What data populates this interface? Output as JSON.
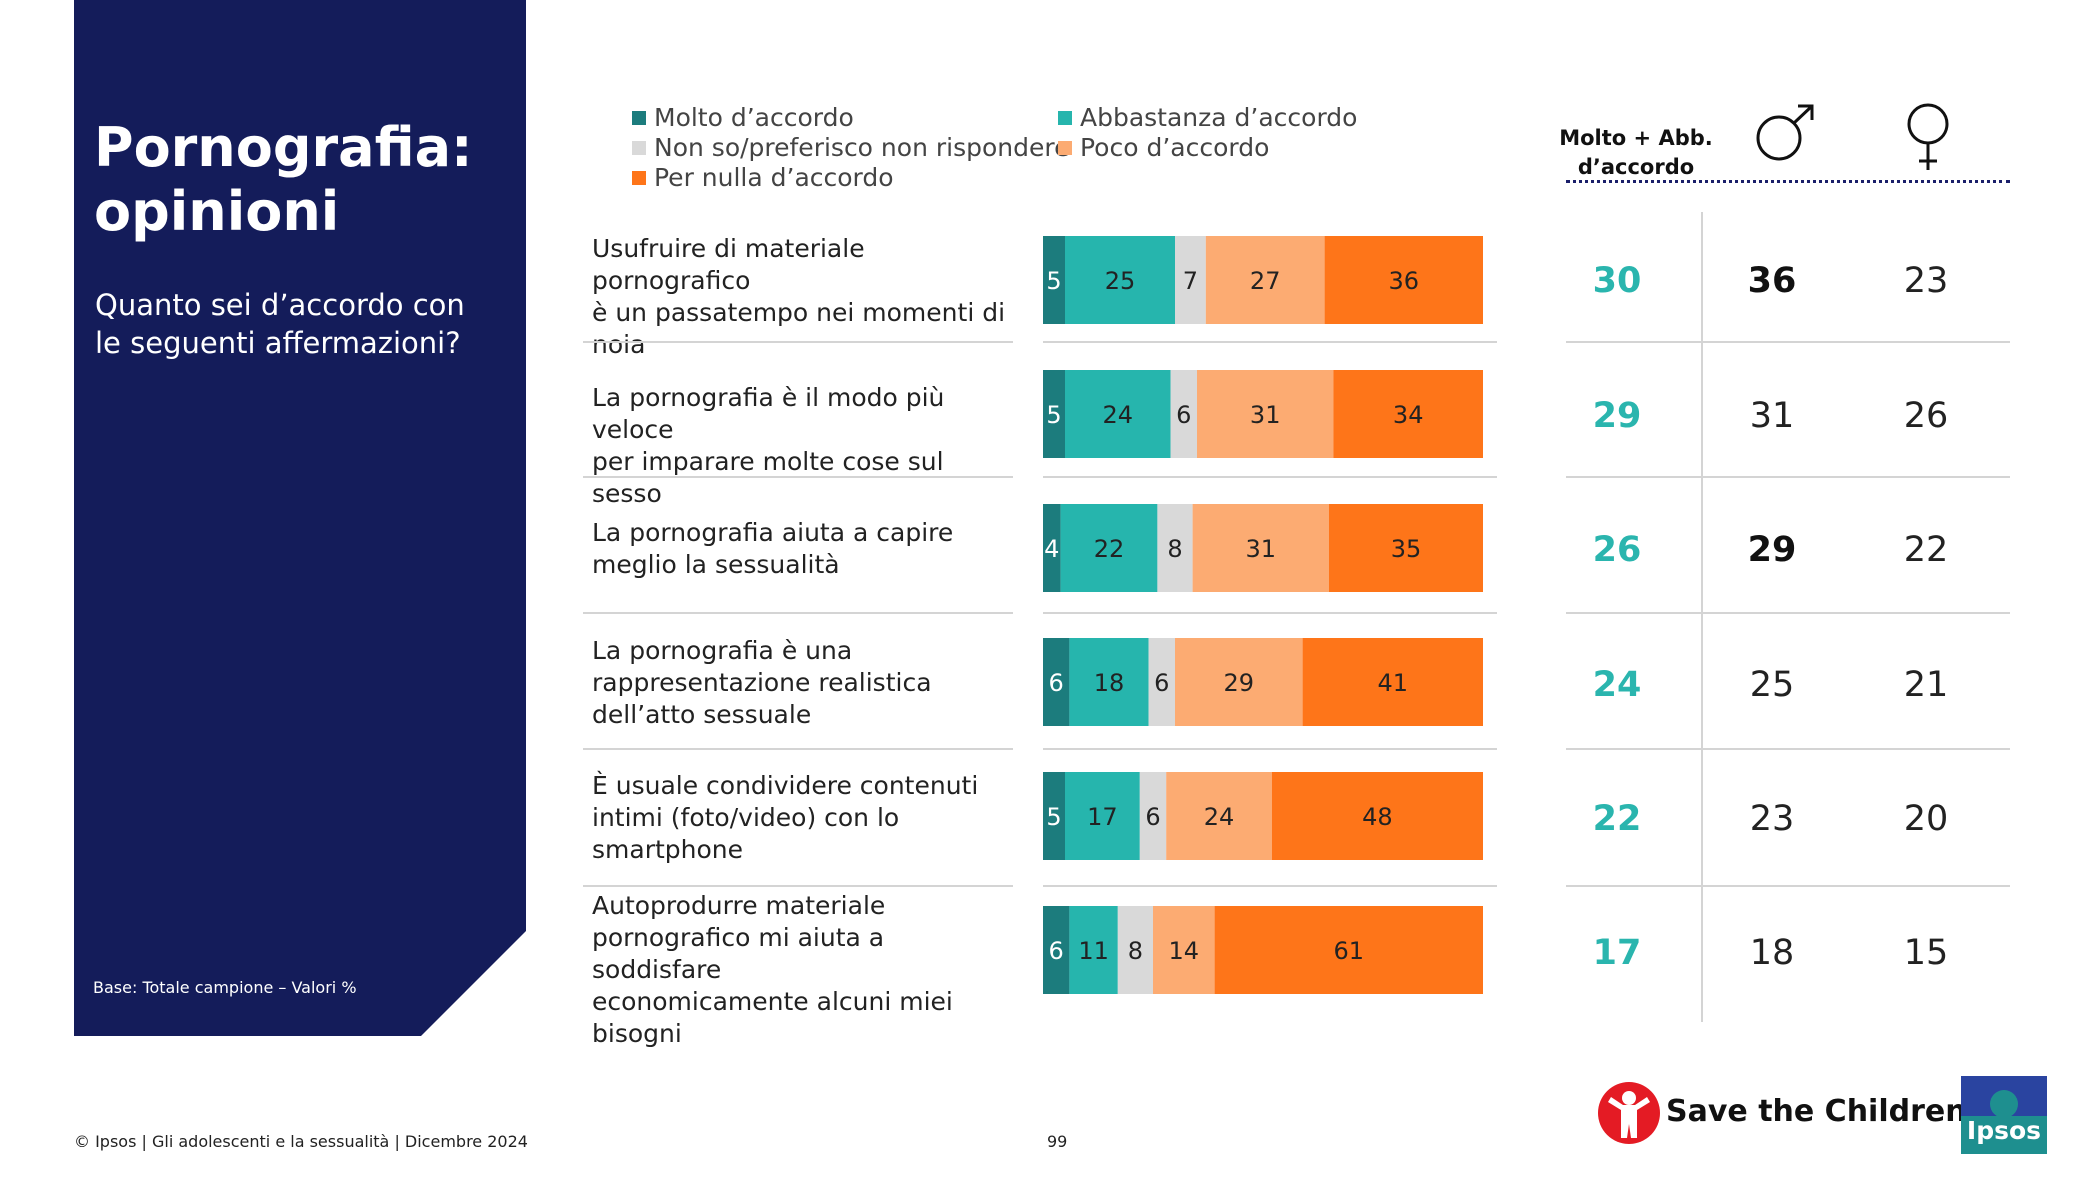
{
  "slide": {
    "title_line1": "Pornografia:",
    "title_line2": "opinioni",
    "subtitle": "Quanto sei d’accordo con le seguenti affermazioni?",
    "base_note": "Base: Totale campione – Valori %"
  },
  "legend": [
    {
      "label": "Molto d’accordo",
      "color": "#1c7c7d"
    },
    {
      "label": "Abbastanza d’accordo",
      "color": "#26b5ad"
    },
    {
      "label": "Non so/preferisco non rispondere",
      "color": "#d9d9d9"
    },
    {
      "label": "Poco d’accordo",
      "color": "#fcab72"
    },
    {
      "label": "Per nulla d’accordo",
      "color": "#fe7519"
    }
  ],
  "columns": {
    "total_header_line1": "Molto + Abb.",
    "total_header_line2": "d’accordo",
    "male_icon": "male-symbol-icon",
    "female_icon": "female-symbol-icon"
  },
  "chart_data": {
    "type": "bar",
    "orientation": "horizontal",
    "stacked": true,
    "unit": "%",
    "categories": [
      "Usufruire di materiale pornografico è un passatempo nei momenti di noia",
      "La pornografia è il modo più veloce per imparare molte cose sul sesso",
      "La pornografia aiuta a capire meglio la sessualità",
      "La pornografia è una rappresentazione realistica dell’atto sessuale",
      "È usuale condividere contenuti intimi (foto/video) con lo smartphone",
      "Autoprodurre materiale pornografico mi aiuta a soddisfare economicamente alcuni miei bisogni"
    ],
    "series": [
      {
        "name": "Molto d’accordo",
        "color": "#1c7c7d",
        "values": [
          5,
          5,
          4,
          6,
          5,
          6
        ]
      },
      {
        "name": "Abbastanza d’accordo",
        "color": "#26b5ad",
        "values": [
          25,
          24,
          22,
          18,
          17,
          11
        ]
      },
      {
        "name": "Non so/preferisco non rispondere",
        "color": "#d9d9d9",
        "values": [
          7,
          6,
          8,
          6,
          6,
          8
        ]
      },
      {
        "name": "Poco d’accordo",
        "color": "#fcab72",
        "values": [
          27,
          31,
          31,
          29,
          24,
          14
        ]
      },
      {
        "name": "Per nulla d’accordo",
        "color": "#fe7519",
        "values": [
          36,
          34,
          35,
          41,
          48,
          61
        ]
      }
    ],
    "table": {
      "total": [
        30,
        29,
        26,
        24,
        22,
        17
      ],
      "male": [
        36,
        31,
        29,
        25,
        23,
        18
      ],
      "female": [
        23,
        26,
        22,
        21,
        20,
        15
      ],
      "male_bold": [
        true,
        false,
        true,
        false,
        false,
        false
      ]
    },
    "statement_lines": [
      [
        "Usufruire di materiale pornografico",
        "è un passatempo nei momenti di",
        "noia"
      ],
      [
        "La pornografia è il modo più veloce",
        "per imparare molte cose sul sesso"
      ],
      [
        "La pornografia aiuta a capire",
        "meglio la sessualità"
      ],
      [
        "La pornografia è una",
        "rappresentazione realistica",
        "dell’atto sessuale"
      ],
      [
        "È usuale condividere contenuti",
        "intimi (foto/video) con lo",
        "smartphone"
      ],
      [
        "Autoprodurre materiale",
        "pornografico mi aiuta a soddisfare",
        "economicamente alcuni miei",
        "bisogni"
      ]
    ]
  },
  "footer": {
    "text": "© Ipsos | Gli adolescenti e la sessualità | Dicembre 2024",
    "page": "99",
    "logo_stc": "Save the Children",
    "logo_ipsos": "Ipsos"
  }
}
